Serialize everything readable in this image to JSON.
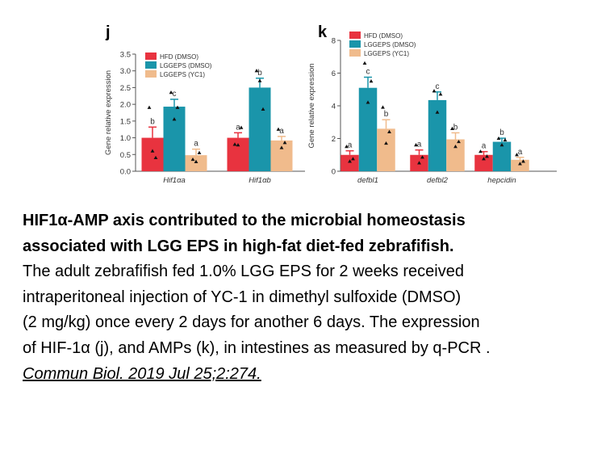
{
  "chart_data": [
    {
      "panel": "j",
      "type": "bar",
      "ylabel": "Gene relative expression",
      "ylim": [
        0,
        3.5
      ],
      "yticks": [
        "0.0",
        "0.5",
        "1.0",
        "1.5",
        "2.0",
        "2.5",
        "3.0",
        "3.5"
      ],
      "categories": [
        "Hif1αa",
        "Hif1αb"
      ],
      "series": [
        {
          "name": "HFD (DMSO)",
          "color": "#e8333f",
          "values": [
            1.0,
            1.0
          ],
          "errors": [
            0.32,
            0.15
          ],
          "letters": [
            "b",
            "a"
          ],
          "points": [
            [
              1.9,
              0.6,
              0.4
            ],
            [
              0.8,
              0.78,
              1.3
            ]
          ]
        },
        {
          "name": "LGGEPS (DMSO)",
          "color": "#1a95aa",
          "values": [
            1.93,
            2.5
          ],
          "errors": [
            0.22,
            0.28
          ],
          "letters": [
            "c",
            "b"
          ],
          "points": [
            [
              2.35,
              1.55,
              1.9
            ],
            [
              3.0,
              2.7,
              1.85
            ]
          ]
        },
        {
          "name": "LGGEPS (YC1)",
          "color": "#f0bb8c",
          "values": [
            0.48,
            0.92
          ],
          "errors": [
            0.18,
            0.12
          ],
          "letters": [
            "a",
            "a"
          ],
          "points": [
            [
              0.35,
              0.28,
              0.55
            ],
            [
              1.25,
              0.7,
              0.85
            ]
          ]
        }
      ]
    },
    {
      "panel": "k",
      "type": "bar",
      "ylabel": "Gene relative expression",
      "ylim": [
        0,
        8
      ],
      "yticks": [
        "0",
        "2",
        "4",
        "6",
        "8"
      ],
      "categories": [
        "defbl1",
        "defbl2",
        "hepcidin"
      ],
      "series": [
        {
          "name": "HFD (DMSO)",
          "color": "#e8333f",
          "values": [
            1.0,
            1.0,
            1.0
          ],
          "errors": [
            0.25,
            0.3,
            0.2
          ],
          "letters": [
            "a",
            "a",
            "a"
          ],
          "points": [
            [
              1.5,
              0.6,
              0.75
            ],
            [
              1.6,
              0.5,
              0.85
            ],
            [
              1.2,
              0.75,
              0.9
            ]
          ]
        },
        {
          "name": "LGGEPS (DMSO)",
          "color": "#1a95aa",
          "values": [
            5.1,
            4.35,
            1.8
          ],
          "errors": [
            0.65,
            0.5,
            0.22
          ],
          "letters": [
            "c",
            "c",
            "b"
          ],
          "points": [
            [
              6.6,
              4.2,
              5.5
            ],
            [
              4.9,
              3.6,
              4.7
            ],
            [
              2.0,
              1.6,
              1.9
            ]
          ]
        },
        {
          "name": "LGGEPS (YC1)",
          "color": "#f0bb8c",
          "values": [
            2.6,
            1.95,
            0.7
          ],
          "errors": [
            0.55,
            0.4,
            0.15
          ],
          "letters": [
            "b",
            "b",
            "a"
          ],
          "points": [
            [
              3.9,
              1.7,
              2.4
            ],
            [
              2.6,
              1.5,
              1.8
            ],
            [
              1.0,
              0.45,
              0.6
            ]
          ]
        }
      ]
    }
  ],
  "caption": {
    "title_line1": "HIF1α-AMP axis contributed to the microbial homeostasis",
    "title_line2": "associated with LGG EPS in high-fat diet-fed zebrafifish.",
    "body_line1": "The adult zebrafifish fed 1.0% LGG EPS for 2 weeks received",
    "body_line2": "intraperitoneal injection of YC-1 in dimethyl sulfoxide (DMSO)",
    "body_line3": "(2 mg/kg) once every 2 days for another 6 days. The expression",
    "body_line4": "of HIF-1α (j), and AMPs (k), in intestines as measured by q-PCR .",
    "citation": "Commun Biol. 2019 Jul 25;2:274."
  }
}
